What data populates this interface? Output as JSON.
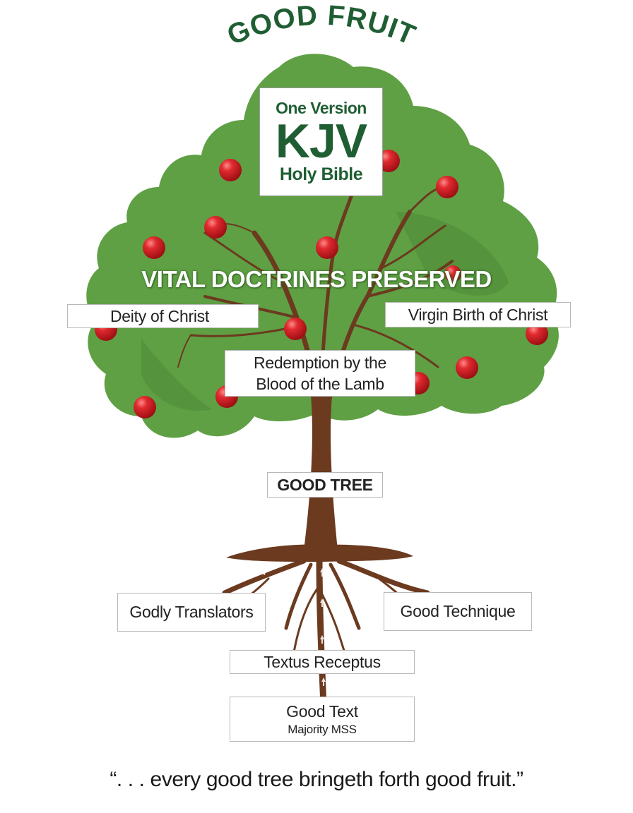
{
  "header": {
    "title": "GOOD FRUIT"
  },
  "kjv_box": {
    "line1": "One Version",
    "line2": "KJV",
    "line3": "Holy Bible"
  },
  "banner": "VITAL DOCTRINES PRESERVED",
  "doctrines": {
    "deity": "Deity of Christ",
    "virgin_birth": "Virgin Birth of Christ",
    "redemption_line1": "Redemption by the",
    "redemption_line2": "Blood of the Lamb"
  },
  "trunk_label": "GOOD TREE",
  "roots": {
    "translators": "Godly Translators",
    "technique": "Good Technique",
    "textus": "Textus Receptus",
    "good_text": "Good Text",
    "good_text_sub": "Majority MSS"
  },
  "quote": "“. . . every good tree bringeth forth good fruit.”",
  "colors": {
    "title_green": "#1f5e33",
    "foliage": "#5fa044",
    "foliage_dark": "#4d8a37",
    "bark": "#6b3a1f",
    "fruit": "#d81f26",
    "kjv_green": "#1f5e33"
  }
}
